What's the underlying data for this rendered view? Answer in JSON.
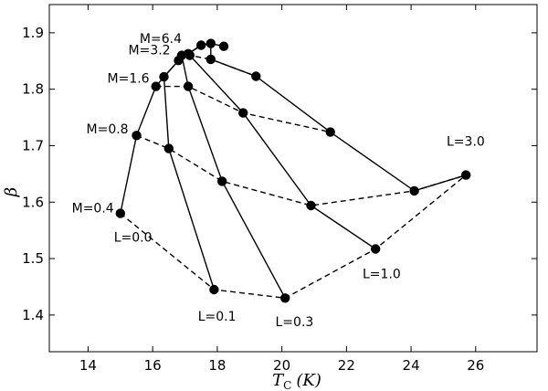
{
  "chart_data": {
    "type": "line",
    "title": "",
    "xlabel": {
      "main": "T",
      "sub": "C",
      "unit": "(K)"
    },
    "ylabel": "β",
    "xlim": [
      12.8,
      27.9
    ],
    "ylim": [
      1.335,
      1.95
    ],
    "xticks": [
      14,
      16,
      18,
      20,
      22,
      24,
      26
    ],
    "yticks": [
      1.4,
      1.5,
      1.6,
      1.7,
      1.8,
      1.9
    ],
    "grid": false,
    "legend": "none",
    "series": [
      {
        "label": "L=0.0",
        "style": "solid",
        "points": [
          [
            15.0,
            1.58
          ],
          [
            15.5,
            1.718
          ],
          [
            16.1,
            1.805
          ],
          [
            16.35,
            1.822
          ],
          [
            16.8,
            1.851
          ],
          [
            16.9,
            1.86
          ],
          [
            17.1,
            1.863
          ],
          [
            17.5,
            1.878
          ],
          [
            17.8,
            1.881
          ]
        ]
      },
      {
        "label": "L=0.1",
        "style": "solid",
        "points": [
          [
            17.9,
            1.445
          ],
          [
            16.5,
            1.695
          ],
          [
            16.35,
            1.822
          ],
          [
            16.8,
            1.851
          ],
          [
            16.9,
            1.86
          ],
          [
            17.1,
            1.863
          ],
          [
            17.5,
            1.878
          ],
          [
            17.8,
            1.881
          ]
        ]
      },
      {
        "label": "L=0.3",
        "style": "solid",
        "points": [
          [
            20.1,
            1.43
          ],
          [
            18.15,
            1.637
          ],
          [
            17.1,
            1.805
          ],
          [
            16.9,
            1.86
          ],
          [
            17.1,
            1.863
          ],
          [
            17.5,
            1.878
          ],
          [
            17.8,
            1.881
          ]
        ]
      },
      {
        "label": "L=1.0",
        "style": "solid",
        "points": [
          [
            22.9,
            1.517
          ],
          [
            20.9,
            1.594
          ],
          [
            18.8,
            1.758
          ],
          [
            17.15,
            1.86
          ],
          [
            17.1,
            1.863
          ],
          [
            17.5,
            1.878
          ],
          [
            17.8,
            1.881
          ]
        ]
      },
      {
        "label": "L=3.0",
        "style": "solid",
        "points": [
          [
            25.7,
            1.648
          ],
          [
            24.1,
            1.62
          ],
          [
            21.5,
            1.724
          ],
          [
            19.2,
            1.823
          ],
          [
            17.8,
            1.853
          ],
          [
            17.8,
            1.881
          ],
          [
            18.2,
            1.876
          ]
        ]
      },
      {
        "label": "M=0.4",
        "style": "dashed",
        "points": [
          [
            15.0,
            1.58
          ],
          [
            17.9,
            1.445
          ],
          [
            20.1,
            1.43
          ],
          [
            22.9,
            1.517
          ],
          [
            25.7,
            1.648
          ]
        ]
      },
      {
        "label": "M=0.8",
        "style": "dashed",
        "points": [
          [
            15.5,
            1.718
          ],
          [
            16.5,
            1.695
          ],
          [
            18.15,
            1.637
          ],
          [
            20.9,
            1.594
          ],
          [
            24.1,
            1.62
          ],
          [
            25.7,
            1.648
          ]
        ]
      },
      {
        "label": "M=1.6",
        "style": "dashed",
        "points": [
          [
            16.1,
            1.805
          ],
          [
            17.1,
            1.805
          ],
          [
            18.8,
            1.758
          ],
          [
            21.5,
            1.724
          ]
        ]
      },
      {
        "label": "M=3.2",
        "style": "dashed",
        "points": [
          [
            16.8,
            1.851
          ],
          [
            17.15,
            1.86
          ],
          [
            17.8,
            1.853
          ],
          [
            19.2,
            1.823
          ]
        ]
      }
    ],
    "annotations": [
      {
        "text": "M=6.4",
        "x": 16.9,
        "y": 1.882,
        "anchor": "end"
      },
      {
        "text": "M=3.2",
        "x": 16.55,
        "y": 1.862,
        "anchor": "end"
      },
      {
        "text": "M=1.6",
        "x": 15.9,
        "y": 1.812,
        "anchor": "end"
      },
      {
        "text": "M=0.8",
        "x": 15.25,
        "y": 1.722,
        "anchor": "end"
      },
      {
        "text": "M=0.4",
        "x": 14.8,
        "y": 1.582,
        "anchor": "end"
      },
      {
        "text": "L=0.0",
        "x": 14.8,
        "y": 1.53,
        "anchor": "start"
      },
      {
        "text": "L=0.1",
        "x": 17.4,
        "y": 1.39,
        "anchor": "start"
      },
      {
        "text": "L=0.3",
        "x": 19.8,
        "y": 1.38,
        "anchor": "start"
      },
      {
        "text": "L=1.0",
        "x": 22.5,
        "y": 1.465,
        "anchor": "start"
      },
      {
        "text": "L=3.0",
        "x": 25.1,
        "y": 1.7,
        "anchor": "start"
      }
    ]
  }
}
